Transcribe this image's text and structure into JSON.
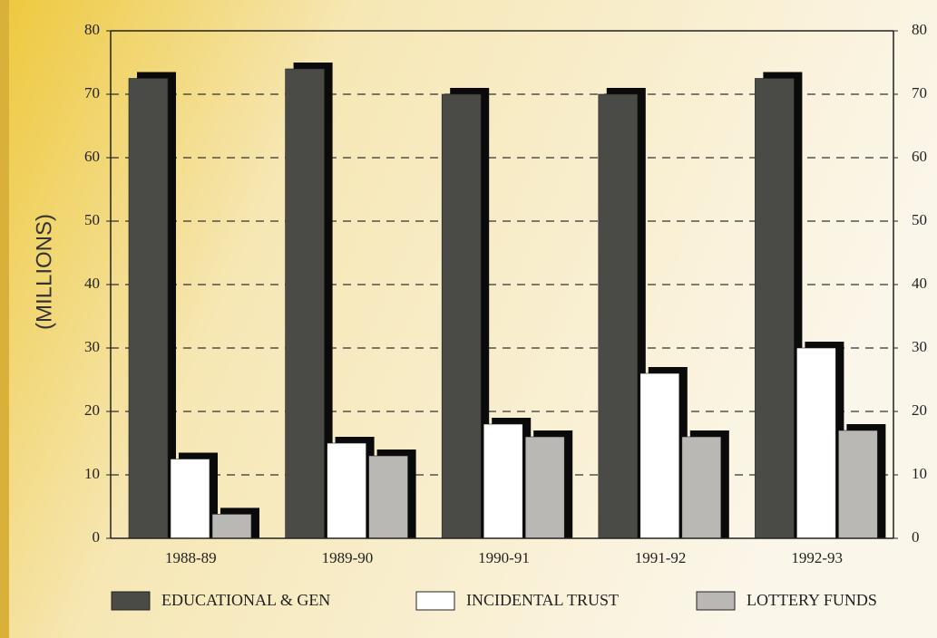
{
  "chart_data": {
    "type": "bar",
    "y_label": "(MILLIONS)",
    "categories": [
      "1988-89",
      "1989-90",
      "1990-91",
      "1991-92",
      "1992-93"
    ],
    "series": [
      {
        "name": "EDUCATIONAL & GEN",
        "color": "#4a4a47",
        "values": [
          72.5,
          74,
          70,
          70,
          72.5
        ]
      },
      {
        "name": "INCIDENTAL TRUST",
        "color": "#ffffff",
        "values": [
          12.5,
          15,
          18,
          26,
          30
        ]
      },
      {
        "name": "LOTTERY FUNDS",
        "color": "#b9b8b4",
        "values": [
          3.8,
          13,
          16,
          16,
          17
        ]
      }
    ],
    "ylim": [
      0,
      80
    ],
    "yticks": [
      0,
      10,
      20,
      30,
      40,
      50,
      60,
      70,
      80
    ],
    "y2lim": [
      0,
      80
    ],
    "y2ticks": [
      0,
      10,
      20,
      30,
      40,
      50,
      60,
      70,
      80
    ],
    "grid": true
  }
}
